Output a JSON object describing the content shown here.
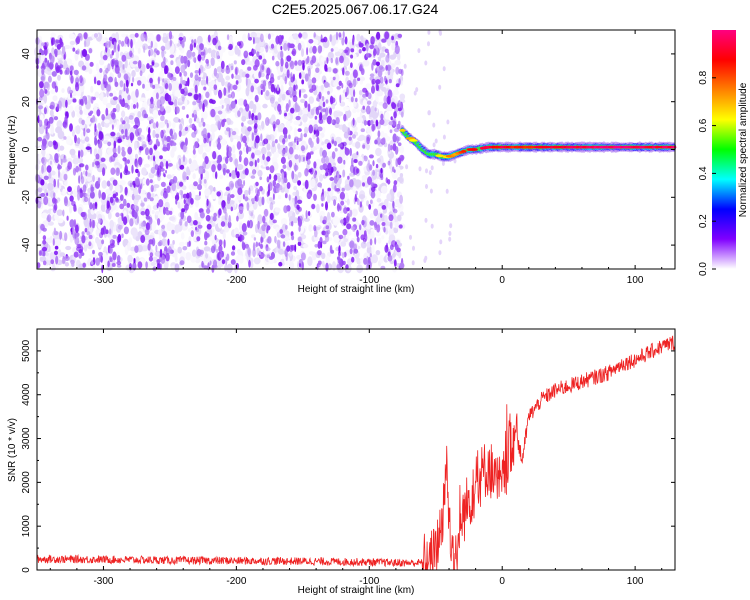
{
  "title": "C2E5.2025.067.06.17.G24",
  "chart_data": [
    {
      "type": "heatmap",
      "title": "C2E5.2025.067.06.17.G24",
      "xlabel": "Height of straight line (km)",
      "ylabel": "Frequency (Hz)",
      "xlim": [
        -350,
        130
      ],
      "ylim": [
        -50,
        50
      ],
      "xticks": [
        -300,
        -200,
        -100,
        0,
        100
      ],
      "yticks": [
        -40,
        -20,
        0,
        20,
        40
      ],
      "colorbar": {
        "label": "Normalized spectral amplitude",
        "range": [
          0,
          1
        ],
        "ticks": [
          "0.0",
          "0.2",
          "0.4",
          "0.6",
          "0.8"
        ],
        "colors": [
          "#ffffff",
          "#8000ff",
          "#0000ff",
          "#00ffff",
          "#00ff00",
          "#ffff00",
          "#ff8000",
          "#ff0000",
          "#ff0080"
        ]
      },
      "noise_region": {
        "x_range": [
          -350,
          -75
        ],
        "y_range": [
          -50,
          48
        ],
        "amplitude": [
          0.0,
          0.15
        ]
      },
      "signal_track": [
        {
          "x": -75,
          "y": 8,
          "amp": 0.6
        },
        {
          "x": -70,
          "y": 5,
          "amp": 0.7
        },
        {
          "x": -65,
          "y": 3,
          "amp": 0.5
        },
        {
          "x": -60,
          "y": 0,
          "amp": 0.4
        },
        {
          "x": -55,
          "y": -2,
          "amp": 0.45
        },
        {
          "x": -50,
          "y": -2,
          "amp": 0.55
        },
        {
          "x": -45,
          "y": -3,
          "amp": 0.6
        },
        {
          "x": -40,
          "y": -3,
          "amp": 0.65
        },
        {
          "x": -35,
          "y": -2,
          "amp": 0.7
        },
        {
          "x": -30,
          "y": -1,
          "amp": 0.75
        },
        {
          "x": -25,
          "y": 0,
          "amp": 0.8
        },
        {
          "x": -20,
          "y": 0,
          "amp": 0.85
        },
        {
          "x": -10,
          "y": 1,
          "amp": 0.88
        },
        {
          "x": 0,
          "y": 1,
          "amp": 0.85
        },
        {
          "x": 20,
          "y": 1,
          "amp": 0.8
        },
        {
          "x": 40,
          "y": 1,
          "amp": 0.85
        },
        {
          "x": 60,
          "y": 1,
          "amp": 0.9
        },
        {
          "x": 80,
          "y": 1,
          "amp": 0.95
        },
        {
          "x": 100,
          "y": 1,
          "amp": 0.9
        },
        {
          "x": 130,
          "y": 1,
          "amp": 0.9
        }
      ]
    },
    {
      "type": "line",
      "xlabel": "Height of straight line (km)",
      "ylabel": "SNR (10 * v/v)",
      "xlim": [
        -350,
        130
      ],
      "ylim": [
        0,
        5500
      ],
      "xticks": [
        -300,
        -200,
        -100,
        0,
        100
      ],
      "yticks": [
        0,
        1000,
        2000,
        3000,
        4000,
        5000
      ],
      "color": "#ee2222",
      "series": [
        {
          "x": [
            -350,
            -300,
            -250,
            -200,
            -150,
            -100,
            -70,
            -55,
            -50,
            -45,
            -42,
            -40,
            -38,
            -35,
            -32,
            -30,
            -25,
            -20,
            -15,
            -10,
            -5,
            0,
            5,
            10,
            15,
            20,
            30,
            40,
            50,
            60,
            70,
            80,
            90,
            100,
            110,
            120,
            130
          ],
          "y": [
            250,
            240,
            220,
            210,
            200,
            180,
            160,
            170,
            400,
            1200,
            2400,
            1200,
            500,
            300,
            700,
            1200,
            1600,
            1900,
            2200,
            2400,
            2000,
            1900,
            2700,
            3200,
            2500,
            3500,
            3900,
            4100,
            4200,
            4300,
            4400,
            4500,
            4700,
            4800,
            4950,
            5100,
            5200
          ],
          "noise": 200
        }
      ]
    }
  ]
}
